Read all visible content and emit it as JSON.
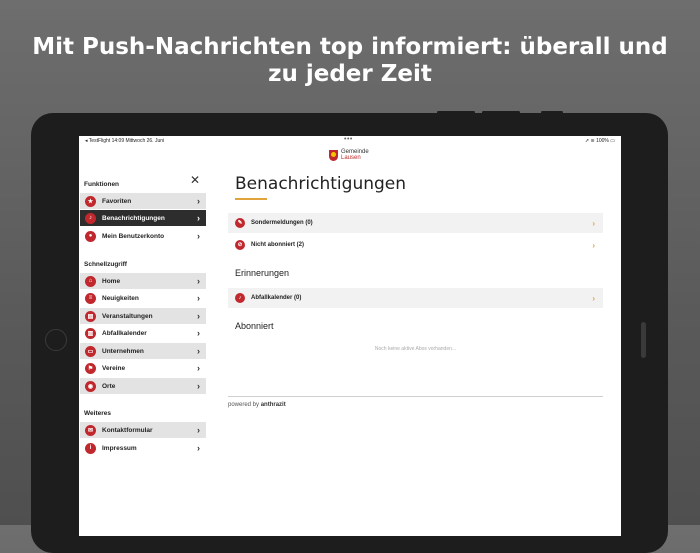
{
  "headline": {
    "line1": "Mit Push-Nachrichten top informiert: überall und",
    "line2": "zu jeder Zeit"
  },
  "statusbar": {
    "left": "◂ TestFlight  14:09  Mittwoch 26. Juni",
    "center": "•••",
    "right": "➚ ≋ 100% ▭"
  },
  "brand": {
    "line1": "Gemeinde",
    "line2": "Lausen"
  },
  "sidebar": {
    "close": "✕",
    "funktionen_title": "Funktionen",
    "funktionen": [
      {
        "label": "Favoriten",
        "icon": "★"
      },
      {
        "label": "Benachrichtigungen",
        "icon": "♪"
      },
      {
        "label": "Mein Benutzerkonto",
        "icon": "●"
      }
    ],
    "schnell_title": "Schnellzugriff",
    "schnell": [
      {
        "label": "Home",
        "icon": "⌂"
      },
      {
        "label": "Neuigkeiten",
        "icon": "≡"
      },
      {
        "label": "Veranstaltungen",
        "icon": "▤"
      },
      {
        "label": "Abfallkalender",
        "icon": "▥"
      },
      {
        "label": "Unternehmen",
        "icon": "▭"
      },
      {
        "label": "Vereine",
        "icon": "⚑"
      },
      {
        "label": "Orte",
        "icon": "◉"
      }
    ],
    "weiteres_title": "Weiteres",
    "weiteres": [
      {
        "label": "Kontaktformular",
        "icon": "✉"
      },
      {
        "label": "Impressum",
        "icon": "i"
      }
    ],
    "chevron": "›"
  },
  "main": {
    "title": "Benachrichtigungen",
    "rows": [
      {
        "label": "Sondermeldungen (0)",
        "icon": "✎"
      },
      {
        "label": "Nicht abonniert (2)",
        "icon": "⊘"
      }
    ],
    "erinnerungen_title": "Erinnerungen",
    "erinnerungen": [
      {
        "label": "Abfallkalender (0)",
        "icon": "♪"
      }
    ],
    "abonniert_title": "Abonniert",
    "empty_text": "Noch keine aktive Abos vorhanden...",
    "powered_prefix": "powered by",
    "powered_brand": "anthrazit",
    "chevron": "›"
  },
  "colors": {
    "accent": "#c0282d",
    "highlight": "#e0a43a",
    "active_bg": "#2d2d2d"
  }
}
